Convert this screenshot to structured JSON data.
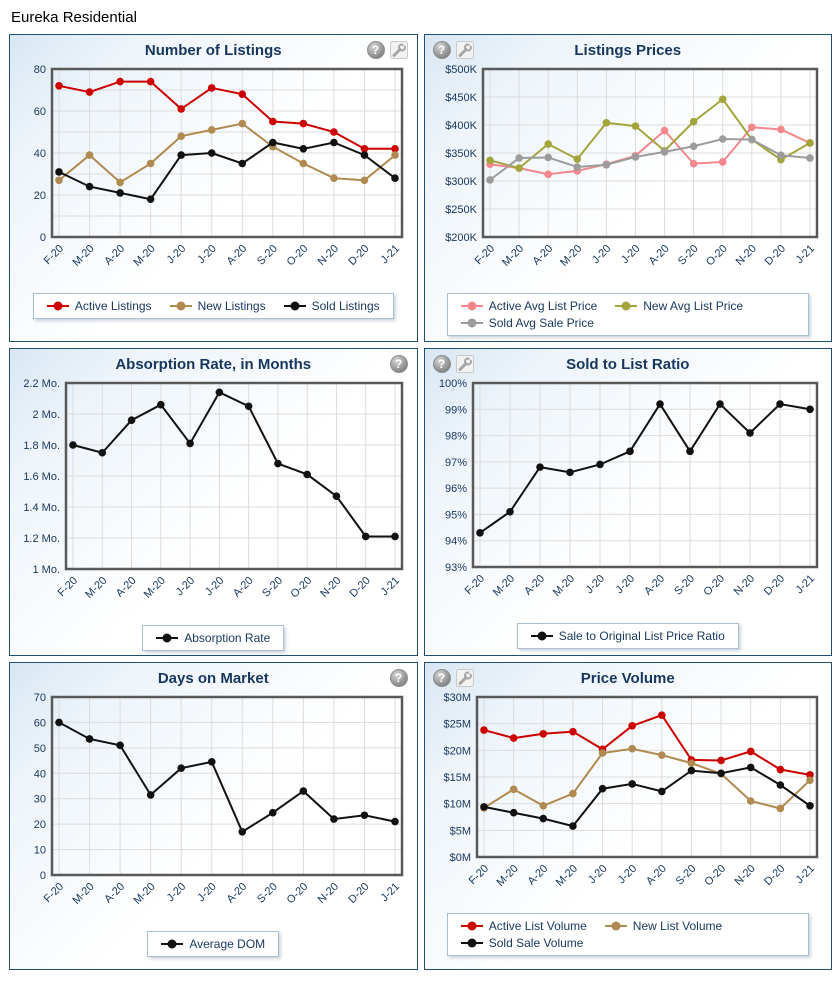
{
  "page_title": "Eureka Residential",
  "chart_data": [
    {
      "id": "number-of-listings",
      "type": "line",
      "title": "Number of Listings",
      "icons": {
        "side": "right",
        "items": [
          "help-icon",
          "tools-icon"
        ]
      },
      "categories": [
        "F-20",
        "M-20",
        "A-20",
        "M-20",
        "J-20",
        "J-20",
        "A-20",
        "S-20",
        "O-20",
        "N-20",
        "D-20",
        "J-21"
      ],
      "ylim": [
        0,
        80
      ],
      "ytick": {
        "label_step": 20,
        "grid_step": 10,
        "prefix": "",
        "suffix": ""
      },
      "grid": true,
      "legend_position": "bottom",
      "series": [
        {
          "name": "Active Listings",
          "color": "#CC0000",
          "values": [
            72,
            69,
            74,
            74,
            61,
            71,
            68,
            55,
            54,
            50,
            42,
            42
          ]
        },
        {
          "name": "New Listings",
          "color": "#B08A50",
          "values": [
            27,
            39,
            26,
            35,
            48,
            51,
            54,
            43,
            35,
            28,
            27,
            39
          ]
        },
        {
          "name": "Sold Listings",
          "color": "#111111",
          "values": [
            31,
            24,
            21,
            18,
            39,
            40,
            35,
            45,
            42,
            45,
            39,
            28
          ]
        }
      ]
    },
    {
      "id": "listings-prices",
      "type": "line",
      "title": "Listings Prices",
      "icons": {
        "side": "left",
        "items": [
          "help-icon",
          "tools-icon"
        ]
      },
      "categories": [
        "F-20",
        "M-20",
        "A-20",
        "M-20",
        "J-20",
        "J-20",
        "A-20",
        "S-20",
        "O-20",
        "N-20",
        "D-20",
        "J-21"
      ],
      "ylim": [
        200,
        500
      ],
      "ytick": {
        "label_step": 50,
        "grid_step": 50,
        "prefix": "$",
        "suffix": "K"
      },
      "grid": true,
      "legend_position": "bottom",
      "series": [
        {
          "name": "Active Avg List Price",
          "color": "#F4878C",
          "values": [
            330,
            323,
            312,
            318,
            330,
            345,
            390,
            331,
            334,
            396,
            392,
            368
          ]
        },
        {
          "name": "New Avg List Price",
          "color": "#A3A53C",
          "values": [
            337,
            323,
            366,
            339,
            404,
            398,
            354,
            406,
            446,
            374,
            338,
            368
          ]
        },
        {
          "name": "Sold Avg Sale Price",
          "color": "#9C9C9C",
          "values": [
            302,
            341,
            342,
            325,
            329,
            343,
            352,
            362,
            375,
            374,
            346,
            341
          ]
        }
      ]
    },
    {
      "id": "absorption-rate",
      "type": "line",
      "title": "Absorption Rate, in Months",
      "icons": {
        "side": "right",
        "items": [
          "help-icon"
        ]
      },
      "categories": [
        "F-20",
        "M-20",
        "A-20",
        "M-20",
        "J-20",
        "J-20",
        "A-20",
        "S-20",
        "O-20",
        "N-20",
        "D-20",
        "J-21"
      ],
      "ylim": [
        1,
        2.2
      ],
      "ytick": {
        "label_step": 0.2,
        "grid_step": 0.2,
        "prefix": "",
        "suffix": " Mo."
      },
      "grid": true,
      "legend_position": "bottom",
      "series": [
        {
          "name": "Absorption Rate",
          "color": "#111111",
          "values": [
            1.8,
            1.75,
            1.96,
            2.06,
            1.81,
            2.14,
            2.05,
            1.68,
            1.61,
            1.47,
            1.21,
            1.21
          ]
        }
      ]
    },
    {
      "id": "sold-to-list-ratio",
      "type": "line",
      "title": "Sold to List Ratio",
      "icons": {
        "side": "left",
        "items": [
          "help-icon",
          "tools-icon"
        ]
      },
      "categories": [
        "F-20",
        "M-20",
        "A-20",
        "M-20",
        "J-20",
        "J-20",
        "A-20",
        "S-20",
        "O-20",
        "N-20",
        "D-20",
        "J-21"
      ],
      "ylim": [
        93,
        100
      ],
      "ytick": {
        "label_step": 1,
        "grid_step": 1,
        "prefix": "",
        "suffix": "%"
      },
      "grid": true,
      "legend_position": "bottom",
      "series": [
        {
          "name": "Sale to Original List Price Ratio",
          "color": "#111111",
          "values": [
            94.3,
            95.1,
            96.8,
            96.6,
            96.9,
            97.4,
            99.2,
            97.4,
            99.2,
            98.1,
            99.2,
            99.0
          ]
        }
      ]
    },
    {
      "id": "days-on-market",
      "type": "line",
      "title": "Days on Market",
      "icons": {
        "side": "right",
        "items": [
          "help-icon"
        ]
      },
      "categories": [
        "F-20",
        "M-20",
        "A-20",
        "M-20",
        "J-20",
        "J-20",
        "A-20",
        "S-20",
        "O-20",
        "N-20",
        "D-20",
        "J-21"
      ],
      "ylim": [
        0,
        70
      ],
      "ytick": {
        "label_step": 10,
        "grid_step": 10,
        "prefix": "",
        "suffix": ""
      },
      "grid": true,
      "legend_position": "bottom",
      "series": [
        {
          "name": "Average DOM",
          "color": "#111111",
          "values": [
            60,
            53.5,
            51,
            31.5,
            42,
            44.5,
            17,
            24.5,
            33,
            22,
            23.5,
            21
          ]
        }
      ]
    },
    {
      "id": "price-volume",
      "type": "line",
      "title": "Price Volume",
      "icons": {
        "side": "left",
        "items": [
          "help-icon",
          "tools-icon"
        ]
      },
      "categories": [
        "F-20",
        "M-20",
        "A-20",
        "M-20",
        "J-20",
        "J-20",
        "A-20",
        "S-20",
        "O-20",
        "N-20",
        "D-20",
        "J-21"
      ],
      "ylim": [
        0,
        30
      ],
      "ytick": {
        "label_step": 5,
        "grid_step": 5,
        "prefix": "$",
        "suffix": "M"
      },
      "grid": true,
      "legend_position": "bottom",
      "series": [
        {
          "name": "Active List Volume",
          "color": "#CC0000",
          "values": [
            23.8,
            22.3,
            23.1,
            23.5,
            20.2,
            24.6,
            26.6,
            18.2,
            18.1,
            19.8,
            16.4,
            15.4
          ]
        },
        {
          "name": "New List Volume",
          "color": "#B08A50",
          "values": [
            9.2,
            12.7,
            9.6,
            11.9,
            19.5,
            20.3,
            19.1,
            17.6,
            15.6,
            10.5,
            9.1,
            14.4
          ]
        },
        {
          "name": "Sold Sale Volume",
          "color": "#111111",
          "values": [
            9.4,
            8.3,
            7.2,
            5.8,
            12.8,
            13.7,
            12.3,
            16.2,
            15.7,
            16.8,
            13.5,
            9.6
          ]
        }
      ]
    }
  ]
}
